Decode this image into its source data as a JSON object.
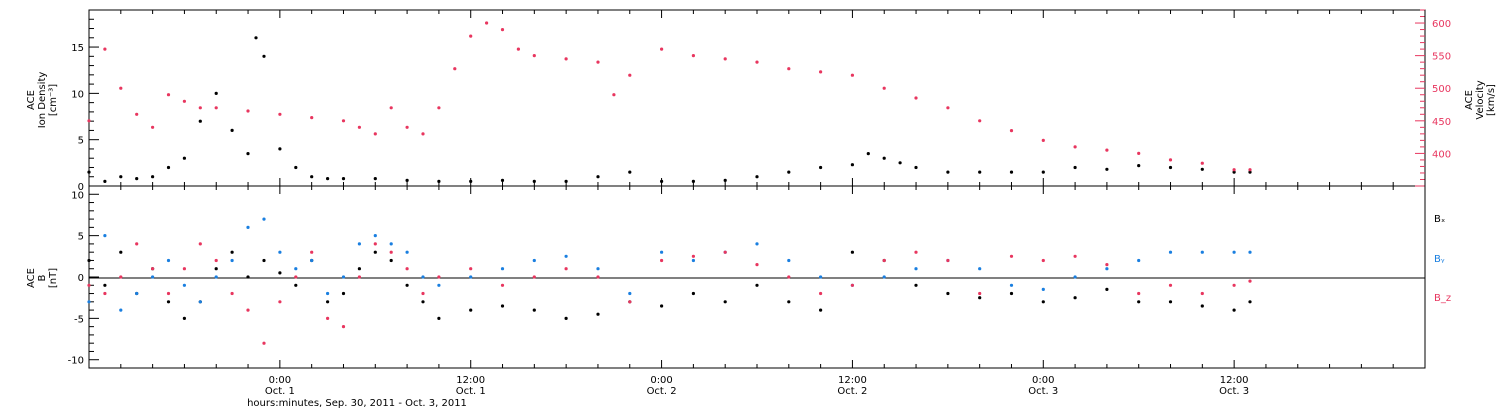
{
  "figure": {
    "xaxis_title": "hours:minutes, Sep. 30, 2011 - Oct.  3, 2011",
    "xticks": [
      {
        "label": "0:00",
        "sub": "Oct. 1",
        "hours": 24
      },
      {
        "label": "12:00",
        "sub": "Oct. 1",
        "hours": 36
      },
      {
        "label": "0:00",
        "sub": "Oct. 2",
        "hours": 48
      },
      {
        "label": "12:00",
        "sub": "Oct. 2",
        "hours": 60
      },
      {
        "label": "0:00",
        "sub": "Oct. 3",
        "hours": 72
      },
      {
        "label": "12:00",
        "sub": "Oct. 3",
        "hours": 84
      }
    ],
    "xrange_hours": [
      12,
      96
    ]
  },
  "chart_data": [
    {
      "type": "scatter",
      "panel": "top",
      "ylabel_left": [
        "ACE",
        "Ion Density",
        "[cm⁻³]"
      ],
      "ylabel_right": [
        "ACE",
        "Velocity",
        "[km/s]"
      ],
      "ylim_left": [
        0,
        19
      ],
      "ylim_right": [
        350,
        620
      ],
      "yticks_left": [
        0,
        5,
        10,
        15
      ],
      "yticks_right": [
        400,
        450,
        500,
        550,
        600
      ],
      "series": [
        {
          "axis": "left",
          "color": "#000000",
          "x": [
            12.0,
            13.0,
            14.0,
            15.0,
            16.0,
            17.0,
            18.0,
            19.0,
            20.0,
            21.0,
            22.0,
            22.5,
            23.0,
            24.0,
            25.0,
            26.0,
            27.0,
            28.0,
            30.0,
            32.0,
            34.0,
            36.0,
            38.0,
            40.0,
            42.0,
            44.0,
            46.0,
            48.0,
            50.0,
            52.0,
            54.0,
            56.0,
            58.0,
            60.0,
            61.0,
            62.0,
            63.0,
            64.0,
            66.0,
            68.0,
            70.0,
            72.0,
            74.0,
            76.0,
            78.0,
            80.0,
            82.0,
            84.0,
            85.0
          ],
          "y": [
            1.5,
            0.5,
            1.0,
            0.8,
            1.0,
            2.0,
            3.0,
            7.0,
            10.0,
            6.0,
            3.5,
            16.0,
            14.0,
            4.0,
            2.0,
            1.0,
            0.8,
            0.8,
            0.8,
            0.6,
            0.5,
            0.5,
            0.6,
            0.5,
            0.5,
            1.0,
            1.5,
            0.5,
            0.5,
            0.6,
            1.0,
            1.5,
            2.0,
            2.3,
            3.5,
            3.0,
            2.5,
            2.0,
            1.5,
            1.5,
            1.5,
            1.5,
            2.0,
            1.8,
            2.2,
            2.0,
            1.8,
            1.5,
            1.5
          ]
        },
        {
          "axis": "right",
          "color": "#e8365f",
          "x": [
            12.0,
            13.0,
            14.0,
            15.0,
            16.0,
            17.0,
            18.0,
            19.0,
            20.0,
            22.0,
            24.0,
            26.0,
            28.0,
            29.0,
            30.0,
            31.0,
            32.0,
            33.0,
            34.0,
            35.0,
            36.0,
            37.0,
            38.0,
            39.0,
            40.0,
            42.0,
            44.0,
            45.0,
            46.0,
            48.0,
            50.0,
            52.0,
            54.0,
            56.0,
            58.0,
            60.0,
            62.0,
            64.0,
            66.0,
            68.0,
            70.0,
            72.0,
            74.0,
            76.0,
            78.0,
            80.0,
            82.0,
            84.0,
            85.0
          ],
          "y": [
            450,
            560,
            500,
            460,
            440,
            490,
            480,
            470,
            470,
            465,
            460,
            455,
            450,
            440,
            430,
            470,
            440,
            430,
            470,
            530,
            580,
            600,
            590,
            560,
            550,
            545,
            540,
            490,
            520,
            560,
            550,
            545,
            540,
            530,
            525,
            520,
            500,
            485,
            470,
            450,
            435,
            420,
            410,
            405,
            400,
            390,
            385,
            375,
            375
          ]
        }
      ]
    },
    {
      "type": "scatter",
      "panel": "bottom",
      "ylabel_left": [
        "ACE",
        "B",
        "[nT]"
      ],
      "ylim_left": [
        -11,
        11
      ],
      "yticks_left": [
        -10,
        -5,
        0,
        5,
        10
      ],
      "legend": [
        {
          "label": "Bₓ",
          "color": "#000000"
        },
        {
          "label": "Bᵧ",
          "color": "#1a7fe0"
        },
        {
          "label": "B_z",
          "color": "#e8365f"
        }
      ],
      "series": [
        {
          "name": "Bₓ",
          "color": "#000000",
          "x": [
            12.0,
            13.0,
            14.0,
            15.0,
            16.0,
            17.0,
            18.0,
            19.0,
            20.0,
            21.0,
            22.0,
            23.0,
            24.0,
            25.0,
            26.0,
            27.0,
            28.0,
            29.0,
            30.0,
            31.0,
            32.0,
            33.0,
            34.0,
            36.0,
            38.0,
            40.0,
            42.0,
            44.0,
            46.0,
            48.0,
            50.0,
            52.0,
            54.0,
            56.0,
            58.0,
            60.0,
            62.0,
            64.0,
            66.0,
            68.0,
            70.0,
            72.0,
            74.0,
            76.0,
            78.0,
            80.0,
            82.0,
            84.0,
            85.0
          ],
          "y": [
            2.0,
            -1.0,
            3.0,
            -2.0,
            1.0,
            -3.0,
            -5.0,
            -3.0,
            1.0,
            3.0,
            0.0,
            2.0,
            0.5,
            -1.0,
            2.0,
            -3.0,
            -2.0,
            1.0,
            3.0,
            2.0,
            -1.0,
            -3.0,
            -5.0,
            -4.0,
            -3.5,
            -4.0,
            -5.0,
            -4.5,
            -3.0,
            -3.5,
            -2.0,
            -3.0,
            -1.0,
            -3.0,
            -4.0,
            3.0,
            2.0,
            -1.0,
            -2.0,
            -2.5,
            -2.0,
            -3.0,
            -2.5,
            -1.5,
            -3.0,
            -3.0,
            -3.5,
            -4.0,
            -3.0
          ]
        },
        {
          "name": "Bᵧ",
          "color": "#1a7fe0",
          "x": [
            12.0,
            13.0,
            14.0,
            15.0,
            16.0,
            17.0,
            18.0,
            19.0,
            20.0,
            21.0,
            22.0,
            23.0,
            24.0,
            25.0,
            26.0,
            27.0,
            28.0,
            29.0,
            30.0,
            31.0,
            32.0,
            33.0,
            34.0,
            36.0,
            38.0,
            40.0,
            42.0,
            44.0,
            46.0,
            48.0,
            50.0,
            52.0,
            54.0,
            56.0,
            58.0,
            60.0,
            62.0,
            64.0,
            66.0,
            68.0,
            70.0,
            72.0,
            74.0,
            76.0,
            78.0,
            80.0,
            82.0,
            84.0,
            85.0
          ],
          "y": [
            -3.0,
            5.0,
            -4.0,
            -2.0,
            0.0,
            2.0,
            -1.0,
            -3.0,
            0.0,
            2.0,
            6.0,
            7.0,
            3.0,
            1.0,
            2.0,
            -2.0,
            0.0,
            4.0,
            5.0,
            4.0,
            3.0,
            0.0,
            -1.0,
            0.0,
            1.0,
            2.0,
            2.5,
            1.0,
            -2.0,
            3.0,
            2.0,
            3.0,
            4.0,
            2.0,
            0.0,
            -1.0,
            0.0,
            1.0,
            2.0,
            1.0,
            -1.0,
            -1.5,
            0.0,
            1.0,
            2.0,
            3.0,
            3.0,
            3.0,
            3.0
          ]
        },
        {
          "name": "B_z",
          "color": "#e8365f",
          "x": [
            12.0,
            13.0,
            14.0,
            15.0,
            16.0,
            17.0,
            18.0,
            19.0,
            20.0,
            21.0,
            22.0,
            23.0,
            24.0,
            25.0,
            26.0,
            27.0,
            28.0,
            29.0,
            30.0,
            31.0,
            32.0,
            33.0,
            34.0,
            36.0,
            38.0,
            40.0,
            42.0,
            44.0,
            46.0,
            48.0,
            50.0,
            52.0,
            54.0,
            56.0,
            58.0,
            60.0,
            62.0,
            64.0,
            66.0,
            68.0,
            70.0,
            72.0,
            74.0,
            76.0,
            78.0,
            80.0,
            82.0,
            84.0,
            85.0
          ],
          "y": [
            -1.0,
            -2.0,
            0.0,
            4.0,
            1.0,
            -2.0,
            1.0,
            4.0,
            2.0,
            -2.0,
            -4.0,
            -8.0,
            -3.0,
            0.0,
            3.0,
            -5.0,
            -6.0,
            0.0,
            4.0,
            3.0,
            1.0,
            -2.0,
            0.0,
            1.0,
            -1.0,
            0.0,
            1.0,
            0.0,
            -3.0,
            2.0,
            2.5,
            3.0,
            1.5,
            0.0,
            -2.0,
            -1.0,
            2.0,
            3.0,
            2.0,
            -2.0,
            2.5,
            2.0,
            2.5,
            1.5,
            -2.0,
            -1.0,
            -2.0,
            -1.0,
            -0.5
          ]
        }
      ]
    }
  ]
}
